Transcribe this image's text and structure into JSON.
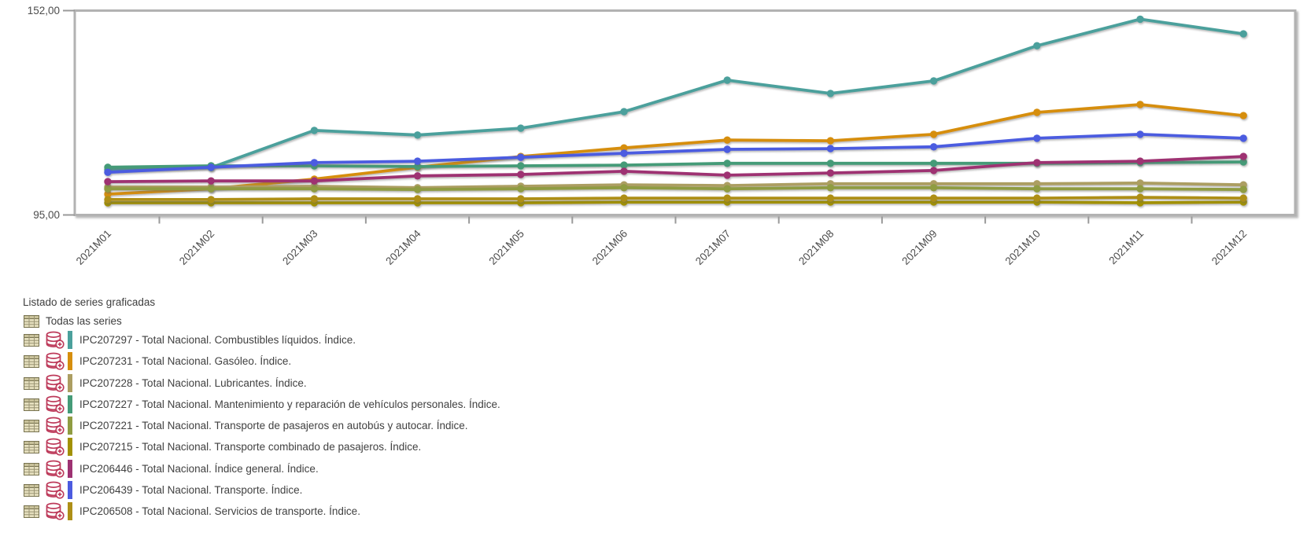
{
  "chart_data": {
    "type": "line",
    "title": "",
    "xlabel": "",
    "ylabel": "",
    "x_categories": [
      "2021M01",
      "2021M02",
      "2021M03",
      "2021M04",
      "2021M05",
      "2021M06",
      "2021M07",
      "2021M08",
      "2021M09",
      "2021M10",
      "2021M11",
      "2021M12"
    ],
    "y_axis": {
      "min": 95,
      "max": 152,
      "tick_labels_shown": [
        "152,00",
        "95,00"
      ]
    },
    "grid": false,
    "legend_position": "list-below-chart",
    "series": [
      {
        "id": "IPC207297",
        "label": "IPC207297 - Total Nacional. Combustibles líquidos. Índice.",
        "color": "#4BA09C",
        "values": [
          107.6,
          108.2,
          118.6,
          117.3,
          119.2,
          123.8,
          132.6,
          128.9,
          132.4,
          142.2,
          149.6,
          145.5
        ]
      },
      {
        "id": "IPC207231",
        "label": "IPC207231 - Total Nacional. Gasóleo. Índice.",
        "color": "#D68E0D",
        "values": [
          100.8,
          102.3,
          105.0,
          108.3,
          111.3,
          113.7,
          115.9,
          115.7,
          117.5,
          123.6,
          125.8,
          122.7
        ]
      },
      {
        "id": "IPC207228",
        "label": "IPC207228 - Total Nacional. Lubricantes. Índice.",
        "color": "#AC9E62",
        "values": [
          102.8,
          102.8,
          103.0,
          102.6,
          103.0,
          103.4,
          103.2,
          103.7,
          103.7,
          103.7,
          103.9,
          103.4
        ]
      },
      {
        "id": "IPC207227",
        "label": "IPC207227 - Total Nacional. Mantenimiento y reparación de vehículos personales. Índice.",
        "color": "#459B78",
        "values": [
          108.3,
          108.7,
          108.7,
          108.5,
          108.7,
          108.9,
          109.4,
          109.4,
          109.4,
          109.4,
          109.6,
          109.8
        ]
      },
      {
        "id": "IPC207221",
        "label": "IPC207221 - Total Nacional. Transporte de pasajeros en autobús y autocar. Índice.",
        "color": "#8F9C42",
        "values": [
          102.3,
          102.3,
          102.3,
          102.1,
          102.3,
          102.6,
          102.3,
          102.6,
          102.6,
          102.3,
          102.3,
          102.1
        ]
      },
      {
        "id": "IPC207215",
        "label": "IPC207215 - Total Nacional. Transporte combinado de pasajeros. Índice.",
        "color": "#A29104",
        "values": [
          98.4,
          98.4,
          98.4,
          98.4,
          98.4,
          98.6,
          98.6,
          98.6,
          98.6,
          98.6,
          98.4,
          98.6
        ]
      },
      {
        "id": "IPC206446",
        "label": "IPC206446 - Total Nacional. Índice general. Índice.",
        "color": "#9E3272",
        "values": [
          104.3,
          104.5,
          104.5,
          105.9,
          106.3,
          107.2,
          106.1,
          106.7,
          107.4,
          109.6,
          110.0,
          111.3
        ]
      },
      {
        "id": "IPC206439",
        "label": "IPC206439 - Total Nacional. Transporte. Índice.",
        "color": "#4C5BE0",
        "values": [
          106.9,
          108.3,
          109.6,
          110.0,
          111.1,
          112.2,
          113.3,
          113.5,
          114.0,
          116.4,
          117.5,
          116.4
        ]
      },
      {
        "id": "IPC206508",
        "label": "IPC206508 - Total Nacional. Servicios de transporte. Índice.",
        "color": "#AE8F17",
        "values": [
          99.3,
          99.3,
          99.5,
          99.5,
          99.5,
          99.7,
          99.7,
          99.7,
          99.7,
          99.7,
          99.9,
          99.7
        ]
      }
    ]
  },
  "legend": {
    "title": "Listado de series graficadas",
    "all_series_label": "Todas las series",
    "icons": {
      "table": "table-icon",
      "database_add": "database-add-icon"
    }
  },
  "style_colors": {
    "plot_border": "#b2b2b2",
    "axis_tick": "#9a9a9a",
    "axis_text": "#4c4c4c",
    "table_icon_fill": "#e6e0bf",
    "table_icon_line": "#77724f",
    "db_icon_stroke": "#bd3a5a"
  }
}
